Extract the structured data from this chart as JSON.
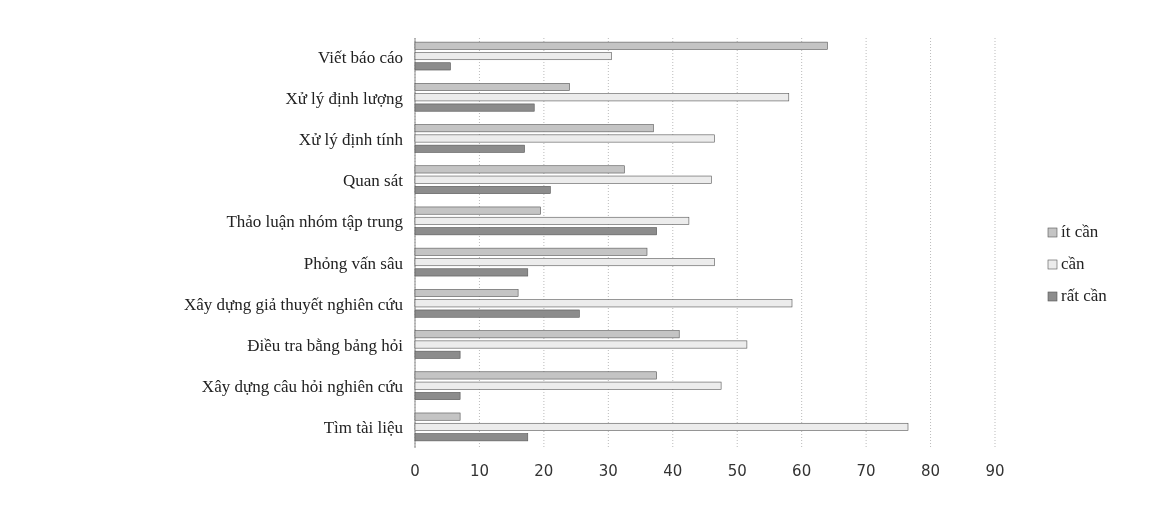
{
  "chart_data": {
    "type": "bar",
    "orientation": "horizontal",
    "categories": [
      "Viết báo cáo",
      "Xử lý định lượng",
      "Xử lý định tính",
      "Quan sát",
      "Thảo luận nhóm tập trung",
      "Phỏng vấn sâu",
      "Xây dựng giả thuyết nghiên cứu",
      "Điều tra bằng bảng hỏi",
      "Xây dựng câu hỏi nghiên cứu",
      "Tìm tài liệu"
    ],
    "series": [
      {
        "name": "ít cần",
        "color": "#c4c4c4",
        "values": [
          64,
          24,
          37,
          32.5,
          19.5,
          36,
          16,
          41,
          37.5,
          7
        ]
      },
      {
        "name": "cần",
        "color": "#ececec",
        "values": [
          30.5,
          58,
          46.5,
          46,
          42.5,
          46.5,
          58.5,
          51.5,
          47.5,
          76.5
        ]
      },
      {
        "name": "rất cần",
        "color": "#8c8c8c",
        "values": [
          5.5,
          18.5,
          17,
          21,
          37.5,
          17.5,
          25.5,
          7,
          7,
          17.5
        ]
      }
    ],
    "xlim": [
      0,
      90
    ],
    "xticks": [
      0,
      10,
      20,
      30,
      40,
      50,
      60,
      70,
      80,
      90
    ],
    "grid": "x",
    "legend": "right"
  }
}
